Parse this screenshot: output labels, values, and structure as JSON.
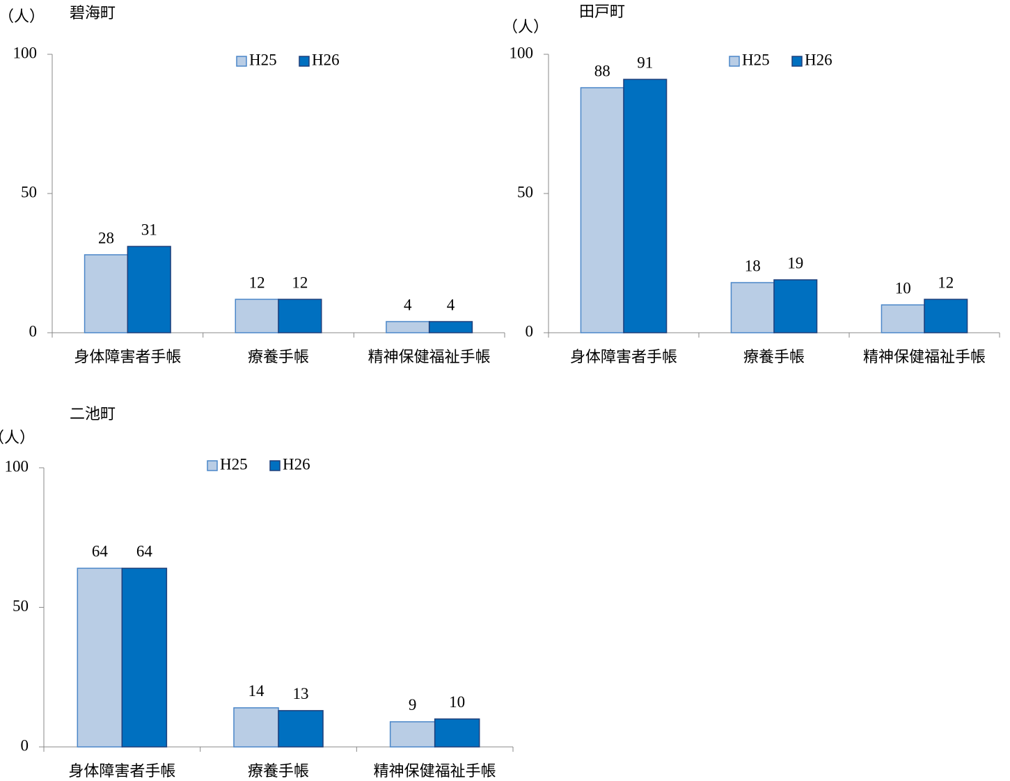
{
  "chart_data": [
    {
      "type": "bar",
      "title": "碧海町",
      "y_label": "（人）",
      "categories": [
        "身体障害者手帳",
        "療養手帳",
        "精神保健福祉手帳"
      ],
      "series": [
        {
          "name": "H25",
          "color": "#b9cde5",
          "values": [
            28,
            12,
            4
          ]
        },
        {
          "name": "H26",
          "color": "#0070c0",
          "values": [
            31,
            12,
            4
          ]
        }
      ],
      "ylim": [
        0,
        100
      ],
      "yticks": [
        0,
        50,
        100
      ]
    },
    {
      "type": "bar",
      "title": "田戸町",
      "y_label": "（人）",
      "categories": [
        "身体障害者手帳",
        "療養手帳",
        "精神保健福祉手帳"
      ],
      "series": [
        {
          "name": "H25",
          "color": "#b9cde5",
          "values": [
            88,
            18,
            10
          ]
        },
        {
          "name": "H26",
          "color": "#0070c0",
          "values": [
            91,
            19,
            12
          ]
        }
      ],
      "ylim": [
        0,
        100
      ],
      "yticks": [
        0,
        50,
        100
      ]
    },
    {
      "type": "bar",
      "title": "二池町",
      "y_label": "（人）",
      "categories": [
        "身体障害者手帳",
        "療養手帳",
        "精神保健福祉手帳"
      ],
      "series": [
        {
          "name": "H25",
          "color": "#b9cde5",
          "values": [
            64,
            14,
            9
          ]
        },
        {
          "name": "H26",
          "color": "#0070c0",
          "values": [
            64,
            13,
            10
          ]
        }
      ],
      "ylim": [
        0,
        100
      ],
      "yticks": [
        0,
        50,
        100
      ]
    }
  ]
}
